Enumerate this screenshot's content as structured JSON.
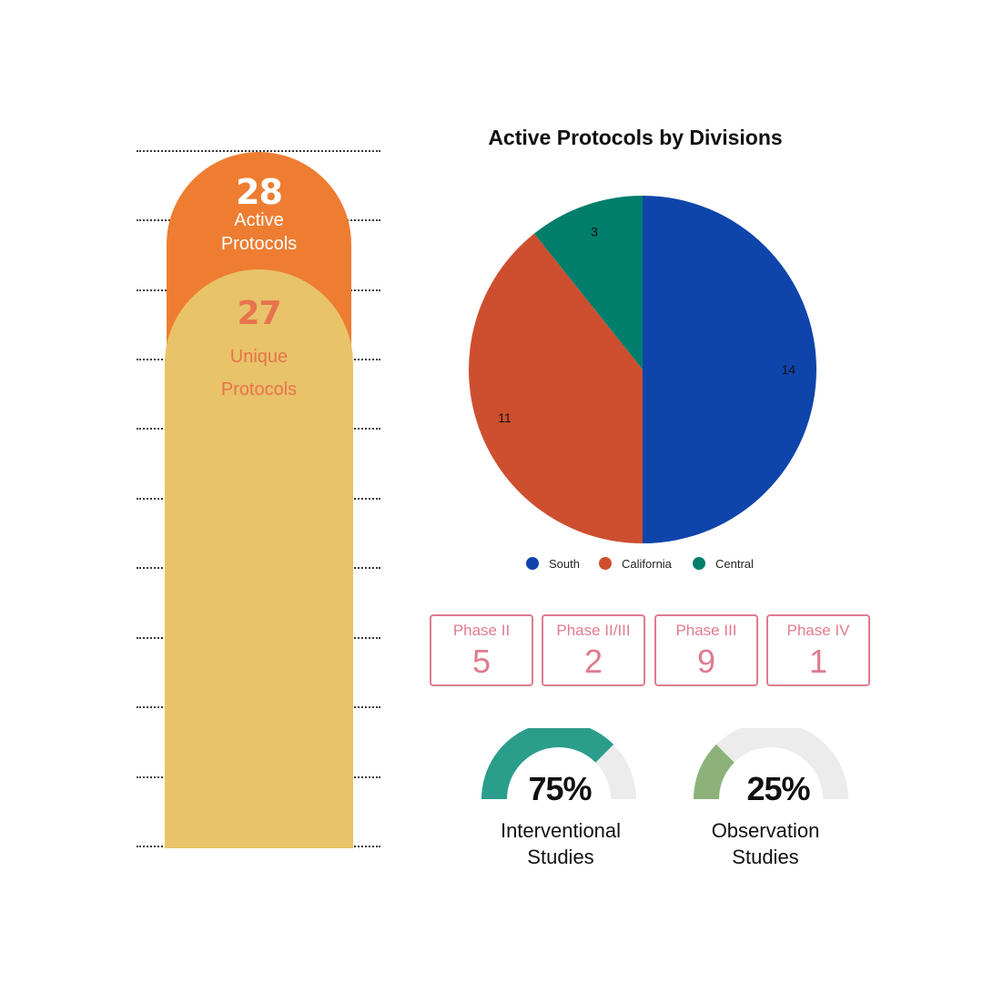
{
  "stack": {
    "active_value": "28",
    "active_label_1": "Active",
    "active_label_2": "Protocols",
    "unique_value": "27",
    "unique_label_1": "Unique",
    "unique_label_2": "Protocols",
    "active_color": "#ee7d32",
    "unique_color": "#e8c369"
  },
  "phases": [
    {
      "name": "Phase II",
      "value": "5"
    },
    {
      "name": "Phase II/III",
      "value": "2"
    },
    {
      "name": "Phase III",
      "value": "9"
    },
    {
      "name": "Phase IV",
      "value": "1"
    }
  ],
  "gauges": [
    {
      "percent": "75%",
      "fraction": 0.75,
      "label_1": "Interventional",
      "label_2": "Studies",
      "color": "#2a9d8b"
    },
    {
      "percent": "25%",
      "fraction": 0.25,
      "label_1": "Observation",
      "label_2": "Studies",
      "color": "#8cb27a"
    }
  ],
  "chart_data": {
    "type": "pie",
    "title": "Active Protocols by Divisions",
    "categories": [
      "South",
      "California",
      "Central"
    ],
    "values": [
      14,
      11,
      3
    ],
    "colors": [
      "#0f45aa",
      "#cd4f2f",
      "#007e6c"
    ],
    "legend": "bottom"
  }
}
